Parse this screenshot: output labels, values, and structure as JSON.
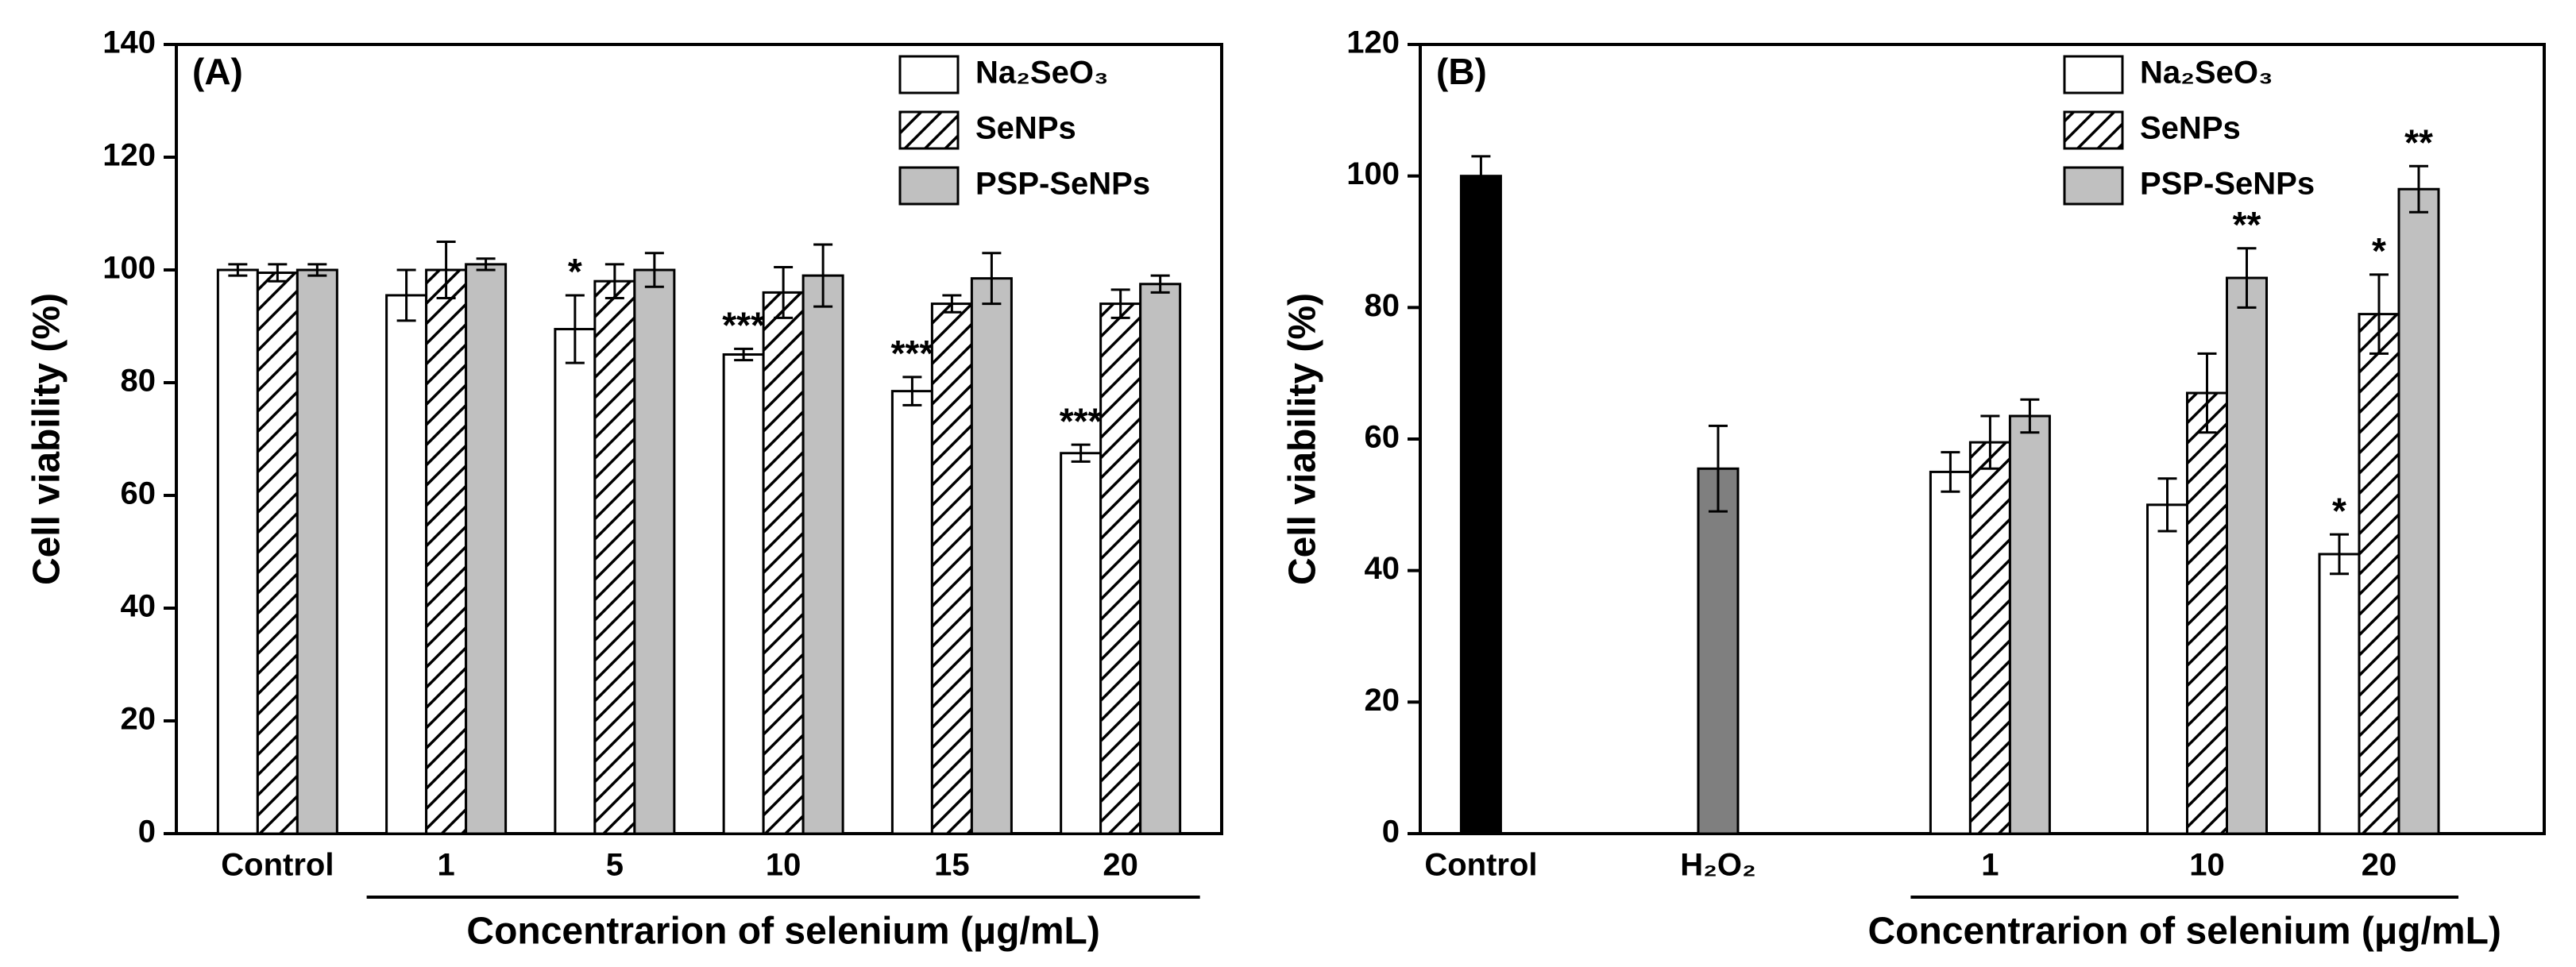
{
  "chart_data": [
    {
      "type": "bar",
      "title": "(A)",
      "ylabel": "Cell viability (%)",
      "xlabel": "Concentrarion of selenium (μg/mL)",
      "categories": [
        "Control",
        "1",
        "5",
        "10",
        "15",
        "20"
      ],
      "series": [
        {
          "name": "Na₂SeO₃",
          "color": "#ffffff",
          "values": [
            100,
            95.5,
            89.5,
            85,
            78.5,
            67.5
          ],
          "errors": [
            1,
            4.5,
            6,
            1,
            2.5,
            1.5
          ],
          "marks": [
            null,
            null,
            "*",
            "***",
            "***",
            "***"
          ]
        },
        {
          "name": "SeNPs",
          "color": "#ffffff",
          "hatch": true,
          "values": [
            99.5,
            100,
            98,
            96,
            94,
            94
          ],
          "errors": [
            1.5,
            5,
            3,
            4.5,
            1.5,
            2.5
          ]
        },
        {
          "name": "PSP-SeNPs",
          "color": "#c0c0c0",
          "values": [
            100,
            101,
            100,
            99,
            98.5,
            97.5
          ],
          "errors": [
            1,
            1,
            3,
            5.5,
            4.5,
            1.5
          ]
        }
      ],
      "ylim": [
        0,
        140
      ],
      "yticks": [
        0,
        20,
        40,
        60,
        80,
        100,
        120,
        140
      ]
    },
    {
      "type": "bar",
      "title": "(B)",
      "ylabel": "Cell viability (%)",
      "xlabel": "Concentrarion of selenium (μg/mL)",
      "categories": [
        "Control",
        "H₂O₂",
        "1",
        "10",
        "20"
      ],
      "series": [
        {
          "name": "Na₂SeO₃",
          "color": "#ffffff",
          "values": [
            null,
            null,
            55,
            50,
            42.5
          ],
          "errors": [
            null,
            null,
            3,
            4,
            3
          ],
          "marks": [
            null,
            null,
            null,
            null,
            "*"
          ]
        },
        {
          "name": "SeNPs",
          "color": "#ffffff",
          "hatch": true,
          "values": [
            null,
            null,
            59.5,
            67,
            79
          ],
          "errors": [
            null,
            null,
            4,
            6,
            6
          ],
          "marks": [
            null,
            null,
            null,
            null,
            "*"
          ]
        },
        {
          "name": "PSP-SeNPs",
          "color": "#c0c0c0",
          "values": [
            null,
            null,
            63.5,
            84.5,
            98
          ],
          "errors": [
            null,
            null,
            2.5,
            4.5,
            3.5
          ],
          "marks": [
            null,
            null,
            null,
            "**",
            "**"
          ]
        },
        {
          "colors": [
            "#000000",
            "#7f7f7f",
            null,
            null,
            null
          ],
          "values": [
            100,
            55.5,
            null,
            null,
            null
          ],
          "errors": [
            3,
            6.5,
            null,
            null,
            null
          ]
        }
      ],
      "ylim": [
        0,
        120
      ],
      "yticks": [
        0,
        20,
        40,
        60,
        80,
        100,
        120
      ]
    }
  ]
}
